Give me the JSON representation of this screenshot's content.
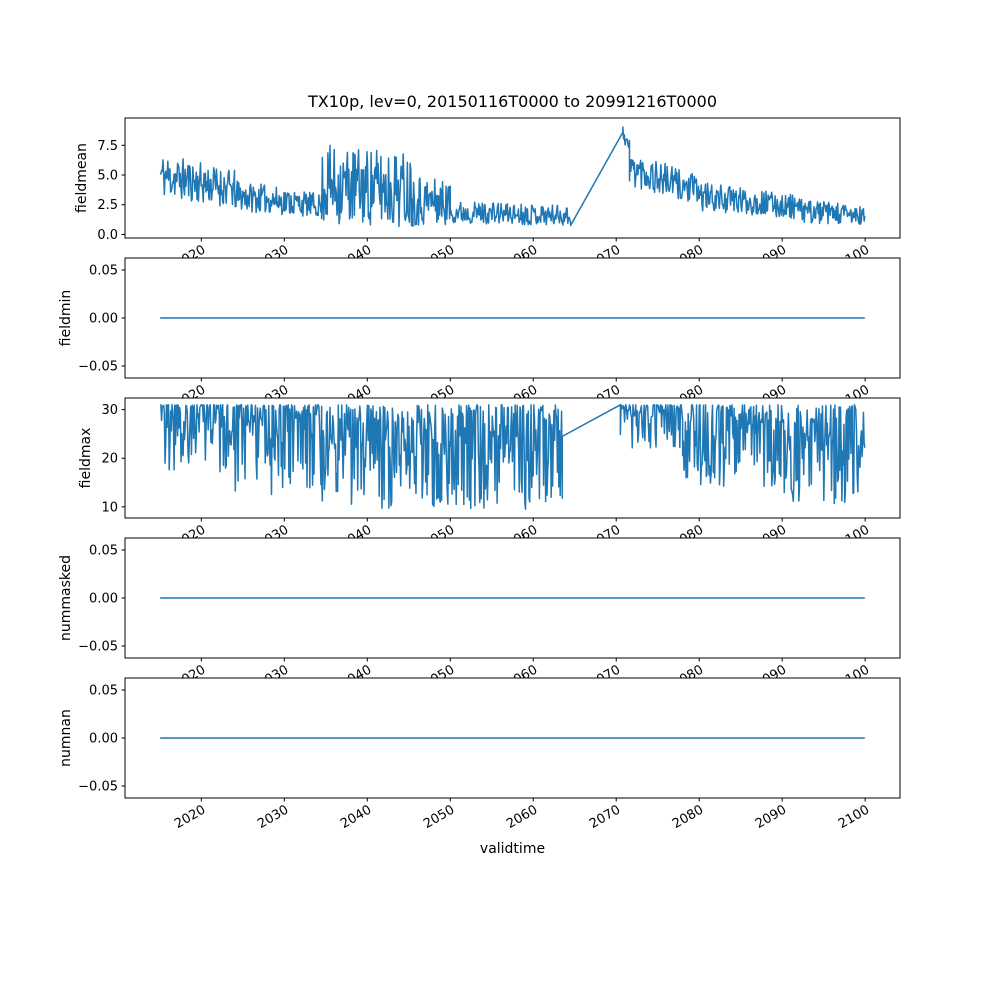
{
  "figure": {
    "background": "#ffffff",
    "line_color": "#1f77b4",
    "axes_color": "#000000",
    "text_color": "#000000"
  },
  "x_axis": {
    "label": "validtime",
    "xlim": [
      2010.8,
      2104.2
    ],
    "xticks": [
      2020,
      2030,
      2040,
      2050,
      2060,
      2070,
      2080,
      2090,
      2100
    ],
    "xtick_labels": [
      "2020",
      "2030",
      "2040",
      "2050",
      "2060",
      "2070",
      "2080",
      "2090",
      "2100"
    ],
    "tick_rotation_deg": 30
  },
  "chart_data": [
    {
      "type": "line",
      "title": "TX10p, lev=0, 20150116T0000 to 20991216T0000",
      "ylabel": "fieldmean",
      "ylim": [
        -0.3,
        9.8
      ],
      "yticks": [
        0,
        2.5,
        5,
        7.5
      ],
      "ytick_labels": [
        "0.0",
        "2.5",
        "5.0",
        "7.5"
      ],
      "seed": 11,
      "series": {
        "segments": [
          {
            "type": "noise",
            "x0": 2015.04,
            "x1": 2024,
            "n": 108,
            "base": [
              5.0,
              3.8
            ],
            "amp": [
              1.9,
              1.6
            ],
            "clamp": [
              1.4,
              8.6
            ]
          },
          {
            "type": "noise",
            "x0": 2024,
            "x1": 2034.5,
            "n": 126,
            "base": [
              3.3,
              2.4
            ],
            "amp": [
              1.3,
              1.0
            ],
            "clamp": [
              0.8,
              6.3
            ]
          },
          {
            "type": "noise",
            "x0": 2034.5,
            "x1": 2045.5,
            "n": 132,
            "base": [
              4.2,
              3.8
            ],
            "amp": [
              3.4,
              3.2
            ],
            "clamp": [
              0.45,
              8.55
            ]
          },
          {
            "type": "noise",
            "x0": 2045.5,
            "x1": 2050,
            "n": 54,
            "base": [
              3.0,
              2.6
            ],
            "amp": [
              2.3,
              1.8
            ],
            "clamp": [
              0.8,
              7.6
            ]
          },
          {
            "type": "noise",
            "x0": 2050,
            "x1": 2064.5,
            "n": 174,
            "base": [
              1.9,
              1.6
            ],
            "amp": [
              0.95,
              0.85
            ],
            "clamp": [
              0.55,
              4.4
            ]
          },
          {
            "type": "gap",
            "points": [
              [
                2064.5,
                0.75
              ],
              [
                2070.8,
                8.6
              ]
            ]
          },
          {
            "type": "noise",
            "x0": 2070.8,
            "x1": 2071.6,
            "n": 10,
            "base": [
              8.6,
              7.2
            ],
            "amp": [
              0.7,
              0.8
            ],
            "clamp": [
              5.5,
              9.35
            ]
          },
          {
            "type": "noise",
            "x0": 2071.6,
            "x1": 2080,
            "n": 101,
            "base": [
              5.6,
              3.6
            ],
            "amp": [
              1.5,
              1.3
            ],
            "clamp": [
              1.7,
              8.2
            ]
          },
          {
            "type": "noise",
            "x0": 2080,
            "x1": 2092,
            "n": 144,
            "base": [
              3.2,
              2.3
            ],
            "amp": [
              1.2,
              1.0
            ],
            "clamp": [
              0.9,
              6.0
            ]
          },
          {
            "type": "noise",
            "x0": 2092,
            "x1": 2099.96,
            "n": 96,
            "base": [
              2.0,
              1.5
            ],
            "amp": [
              1.0,
              0.9
            ],
            "clamp": [
              0.35,
              4.6
            ]
          }
        ]
      }
    },
    {
      "type": "line",
      "ylabel": "fieldmin",
      "ylim": [
        -0.0625,
        0.0625
      ],
      "yticks": [
        -0.05,
        0,
        0.05
      ],
      "ytick_labels": [
        "−0.05",
        "0.00",
        "0.05"
      ],
      "seed": 1,
      "series": {
        "segments": [
          {
            "type": "flat",
            "x0": 2015.04,
            "x1": 2099.96,
            "value": 0
          }
        ]
      }
    },
    {
      "type": "line",
      "ylabel": "fieldmax",
      "ylim": [
        7.7,
        32.4
      ],
      "yticks": [
        10,
        20,
        30
      ],
      "ytick_labels": [
        "10",
        "20",
        "30"
      ],
      "seed": 23,
      "series": {
        "segments": [
          {
            "type": "dips",
            "x0": 2015.04,
            "x1": 2023,
            "n": 96,
            "top": 31,
            "depth": 14,
            "pow": 3.2,
            "clamp": [
              9,
              31.2
            ]
          },
          {
            "type": "dips",
            "x0": 2023,
            "x1": 2034.5,
            "n": 138,
            "top": 31,
            "depth": 19,
            "pow": 2.4,
            "clamp": [
              9,
              31.2
            ]
          },
          {
            "type": "dips",
            "x0": 2034.5,
            "x1": 2063.5,
            "n": 348,
            "top": 31,
            "depth": 21.5,
            "pow": 1.6,
            "clamp": [
              8.8,
              31.2
            ]
          },
          {
            "type": "gap",
            "points": [
              [
                2063.5,
                24.5
              ],
              [
                2070.5,
                31.0
              ]
            ]
          },
          {
            "type": "dips",
            "x0": 2070.5,
            "x1": 2078,
            "n": 90,
            "top": 31,
            "depth": 9,
            "pow": 2.6,
            "clamp": [
              9,
              31.2
            ]
          },
          {
            "type": "dips",
            "x0": 2078,
            "x1": 2090,
            "n": 144,
            "top": 31,
            "depth": 17,
            "pow": 2.0,
            "clamp": [
              9,
              31.2
            ]
          },
          {
            "type": "dips",
            "x0": 2090,
            "x1": 2099.96,
            "n": 120,
            "top": 31,
            "depth": 21,
            "pow": 1.5,
            "clamp": [
              8.8,
              31.2
            ]
          }
        ]
      }
    },
    {
      "type": "line",
      "ylabel": "nummasked",
      "ylim": [
        -0.0625,
        0.0625
      ],
      "yticks": [
        -0.05,
        0,
        0.05
      ],
      "ytick_labels": [
        "−0.05",
        "0.00",
        "0.05"
      ],
      "seed": 2,
      "series": {
        "segments": [
          {
            "type": "flat",
            "x0": 2015.04,
            "x1": 2099.96,
            "value": 0
          }
        ]
      }
    },
    {
      "type": "line",
      "ylabel": "numnan",
      "xlabel": "validtime",
      "ylim": [
        -0.0625,
        0.0625
      ],
      "yticks": [
        -0.05,
        0,
        0.05
      ],
      "ytick_labels": [
        "−0.05",
        "0.00",
        "0.05"
      ],
      "seed": 3,
      "series": {
        "segments": [
          {
            "type": "flat",
            "x0": 2015.04,
            "x1": 2099.96,
            "value": 0
          }
        ]
      }
    }
  ]
}
